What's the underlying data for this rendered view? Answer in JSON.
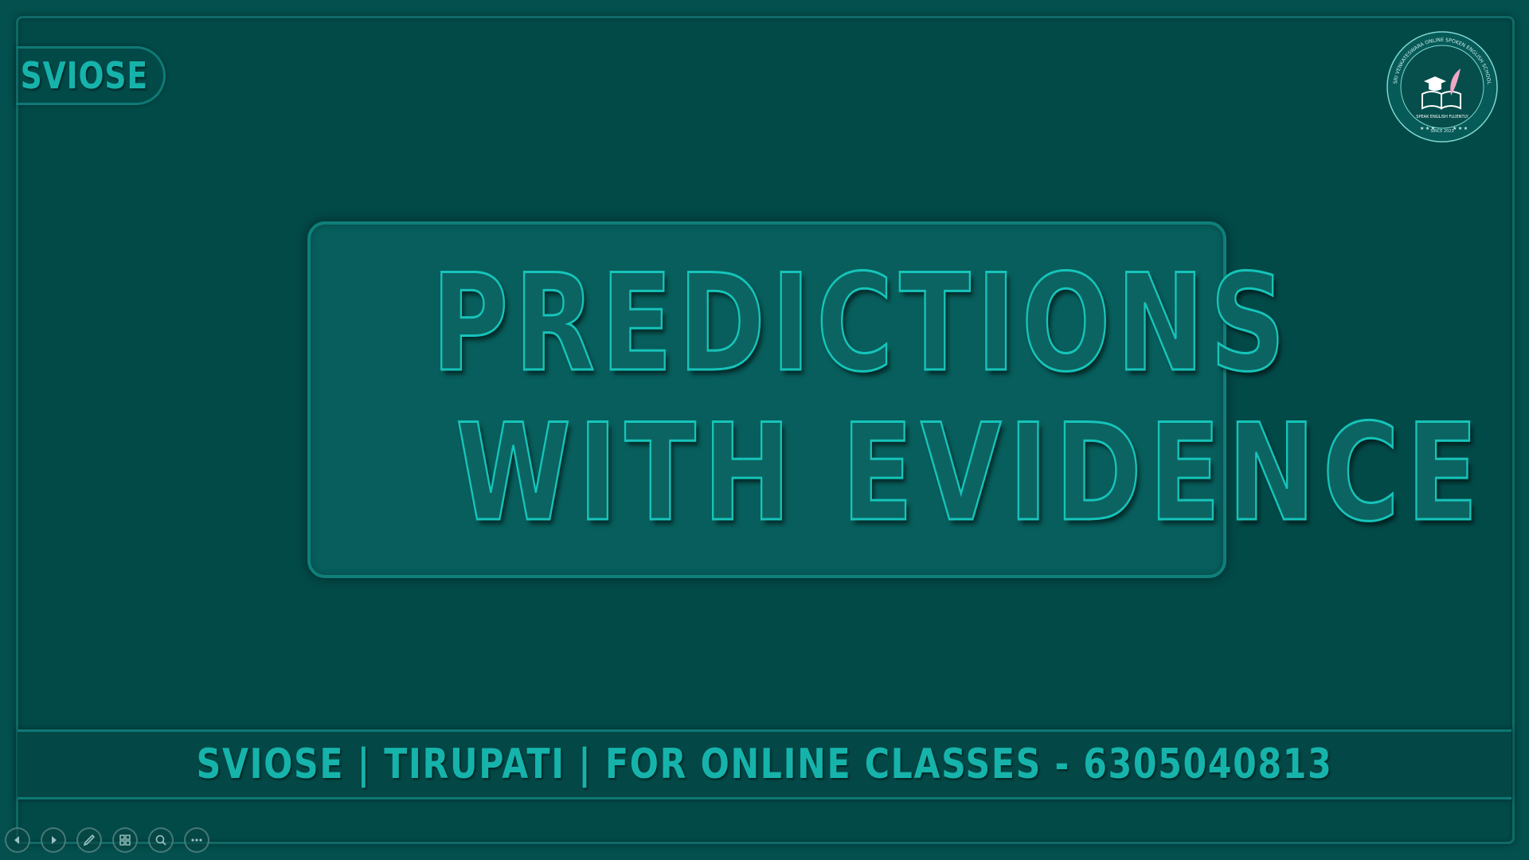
{
  "brand": {
    "label": "SVIOSE"
  },
  "logo": {
    "ring_text": "SRI VENKATESWARA ONLINE SPOKEN ENGLISH SCHOOL",
    "motto": "SPEAK ENGLISH FLUENTLY",
    "since": "SINCE 2023"
  },
  "title": {
    "line1": "PREDICTIONS",
    "line2": "WITH EVIDENCE"
  },
  "footer": {
    "text": "SVIOSE | TIRUPATI | FOR ONLINE CLASSES - 6305040813"
  },
  "controls": {
    "icons": [
      "previous-icon",
      "next-icon",
      "pen-icon",
      "slides-grid-icon",
      "zoom-icon",
      "more-icon"
    ]
  },
  "colors": {
    "background": "#03504e",
    "accent": "#16b3ab",
    "title_stroke": "#16c4ba"
  }
}
